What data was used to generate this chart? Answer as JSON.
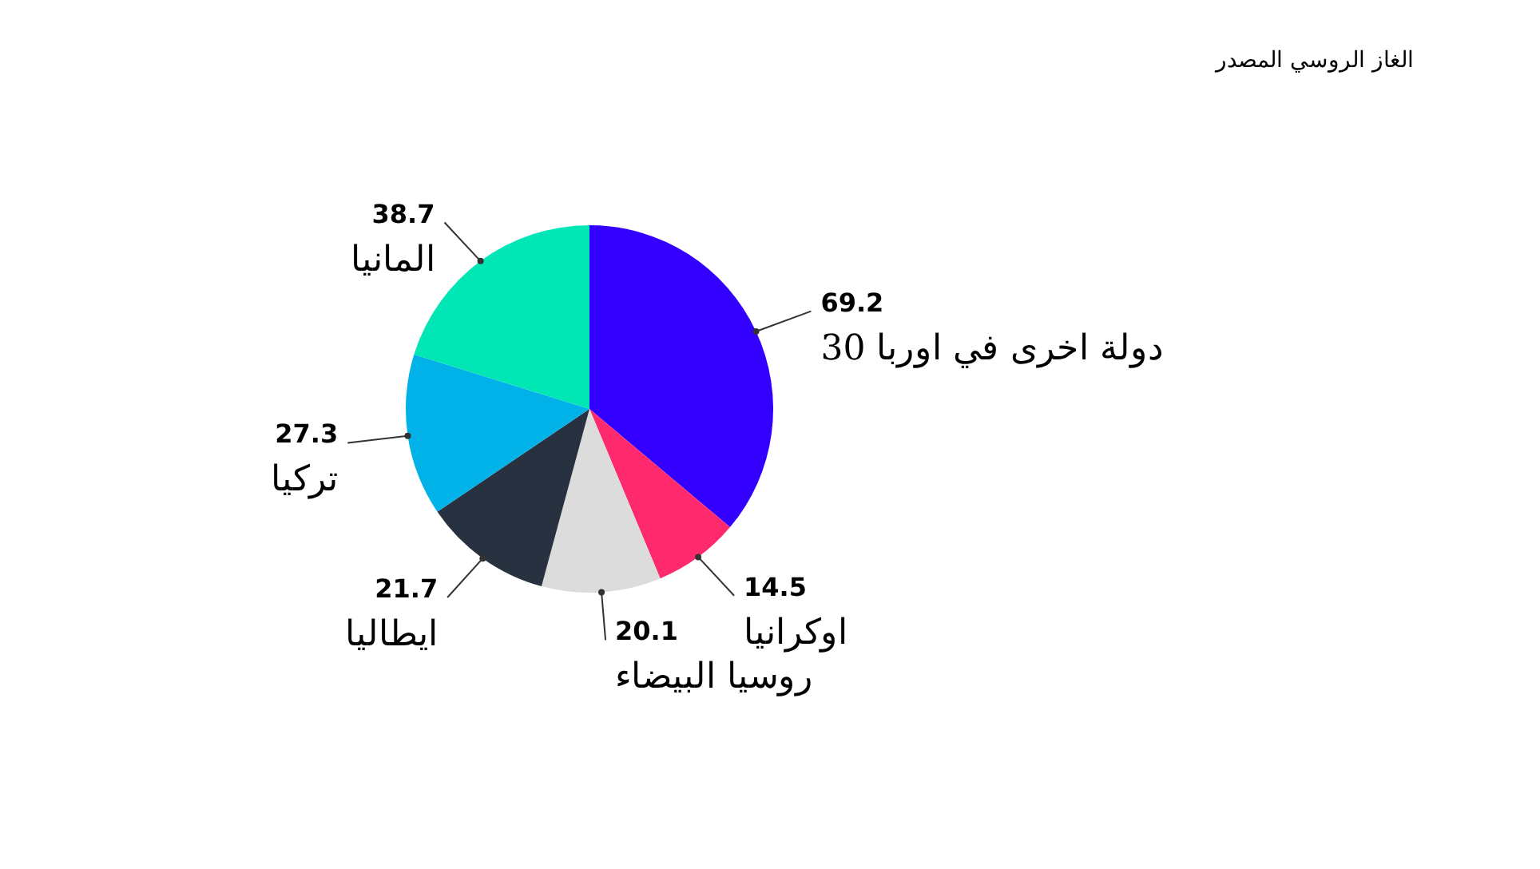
{
  "chart_data": {
    "type": "pie",
    "title": "الغاز الروسي المصدر",
    "categories": [
      "30 دولة اخرى في اوربا",
      "اوكرانيا",
      "روسيا البيضاء",
      "ايطاليا",
      "تركيا",
      "المانيا"
    ],
    "values": [
      69.2,
      14.5,
      20.1,
      21.7,
      27.3,
      38.7
    ],
    "colors": [
      "#3300ff",
      "#ff2a6d",
      "#dcdcdc",
      "#27313f",
      "#00b2e8",
      "#00e6b4"
    ],
    "data_labels": true
  }
}
